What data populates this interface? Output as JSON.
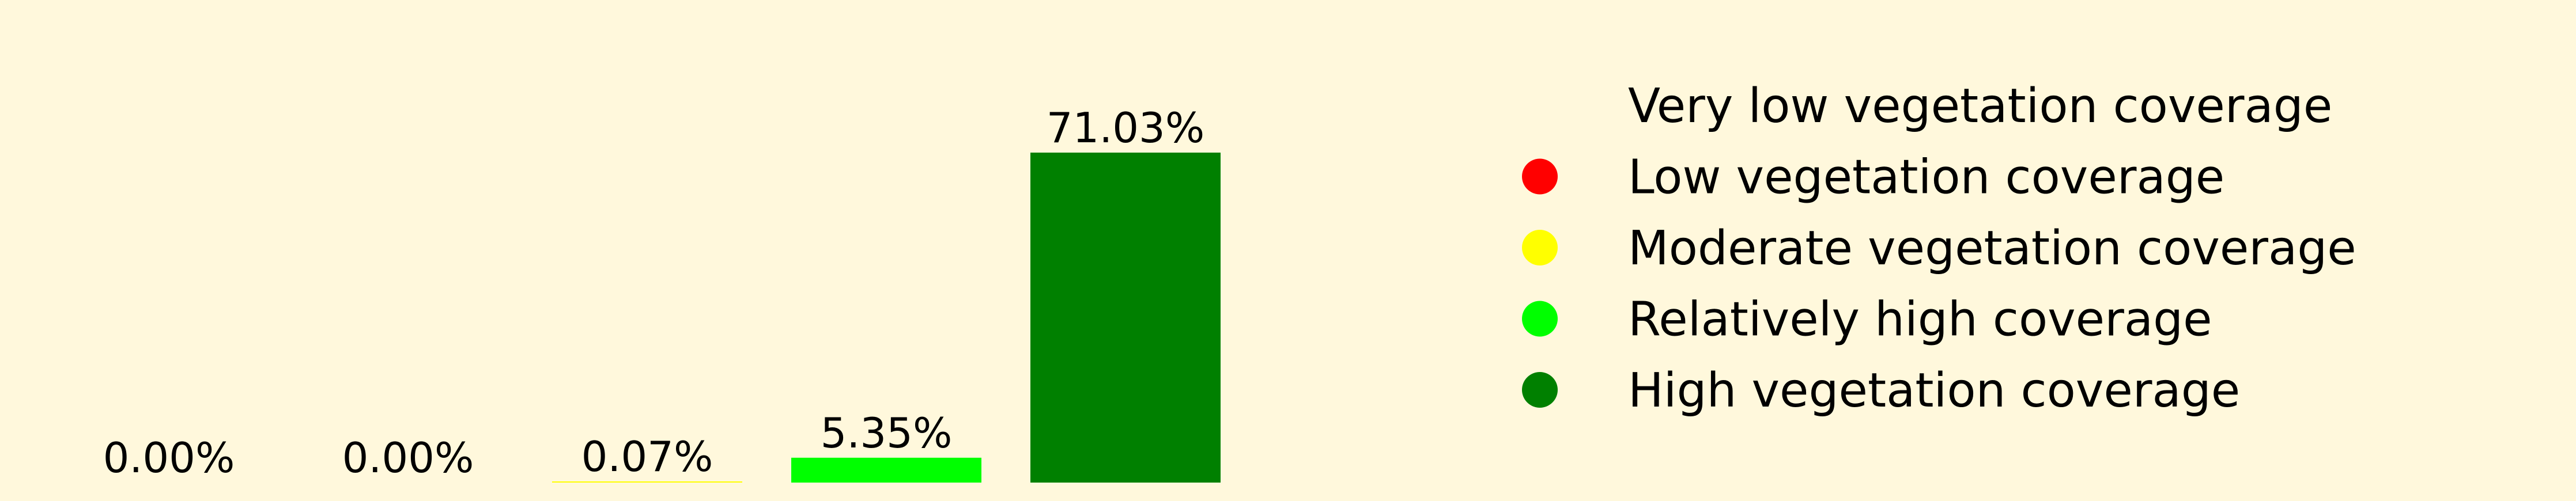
{
  "chart_data": {
    "type": "bar",
    "categories": [
      "Very low vegetation coverage",
      "Low vegetation coverage",
      "Moderate vegetation coverage",
      "Relatively high coverage",
      "High vegetation coverage"
    ],
    "values": [
      0.0,
      0.0,
      0.07,
      5.35,
      71.03
    ],
    "data_labels": [
      "0.00%",
      "0.00%",
      "0.07%",
      "5.35%",
      "71.03%"
    ],
    "colors": [
      "#fff8dc",
      "#ff0000",
      "#ffff00",
      "#00ff00",
      "#008000"
    ],
    "ylim": [
      0,
      71.03
    ],
    "grid": false,
    "axes_visible": false,
    "legend": {
      "placement": "right",
      "entries": [
        {
          "label": "Very low vegetation coverage",
          "color": "#fff8dc"
        },
        {
          "label": "Low vegetation coverage",
          "color": "#ff0000"
        },
        {
          "label": "Moderate vegetation coverage",
          "color": "#ffff00"
        },
        {
          "label": "Relatively high coverage",
          "color": "#00ff00"
        },
        {
          "label": "High vegetation coverage",
          "color": "#008000"
        }
      ]
    }
  }
}
